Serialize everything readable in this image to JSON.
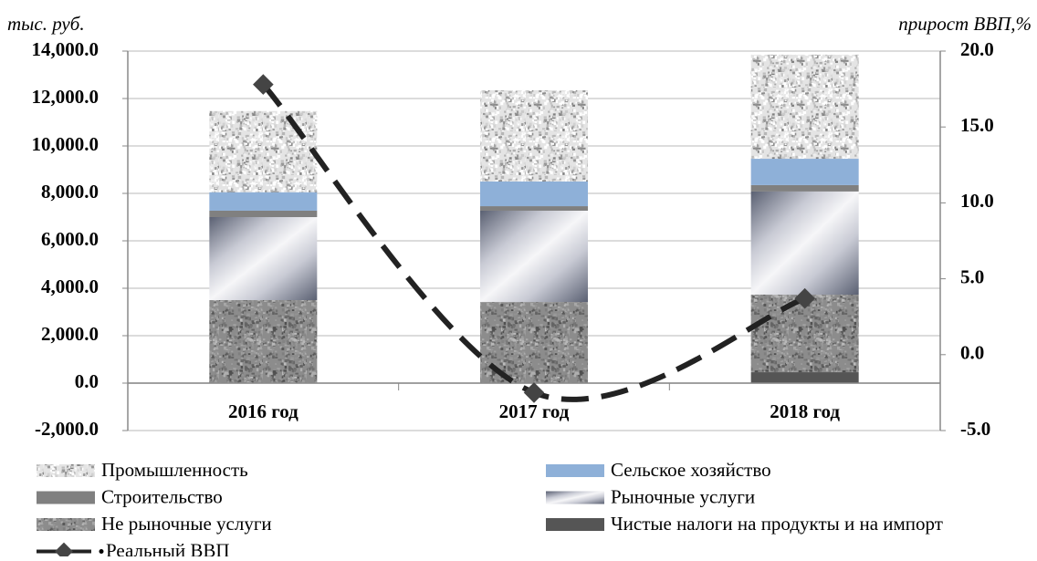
{
  "chart_data": {
    "type": "bar",
    "stacked": true,
    "y_label": "тыс. руб.",
    "y2_label": "прирост ВВП,%",
    "categories": [
      "2016 год",
      "2017 год",
      "2018 год"
    ],
    "ylim": [
      -2000,
      14000
    ],
    "yticks": [
      {
        "value": -2000,
        "label": "-2,000.0"
      },
      {
        "value": 0,
        "label": "0.0"
      },
      {
        "value": 2000,
        "label": "2,000.0"
      },
      {
        "value": 4000,
        "label": "4,000.0"
      },
      {
        "value": 6000,
        "label": "6,000.0"
      },
      {
        "value": 8000,
        "label": "8,000.0"
      },
      {
        "value": 10000,
        "label": "10,000.0"
      },
      {
        "value": 12000,
        "label": "12,000.0"
      },
      {
        "value": 14000,
        "label": "14,000.0"
      }
    ],
    "y2lim": [
      -5,
      20
    ],
    "y2ticks": [
      {
        "value": -5,
        "label": "-5.0"
      },
      {
        "value": 0,
        "label": "0.0"
      },
      {
        "value": 5,
        "label": "5.0"
      },
      {
        "value": 10,
        "label": "10.0"
      },
      {
        "value": 15,
        "label": "15.0"
      },
      {
        "value": 20,
        "label": "20.0"
      }
    ],
    "grid": true,
    "legend": "bottom",
    "series": [
      {
        "name": "Промышленность",
        "color": "#e4e4e4",
        "pattern": "speckle",
        "values": [
          3420,
          3850,
          4390
        ]
      },
      {
        "name": "Сельское хозяйство",
        "color": "#8eb0d8",
        "pattern": "solid",
        "values": [
          780,
          1040,
          1110
        ]
      },
      {
        "name": "Строительство",
        "color": "#808080",
        "pattern": "solid",
        "values": [
          270,
          190,
          270
        ]
      },
      {
        "name": "Рыночные услуги",
        "color": "#5a6072",
        "pattern": "gradient",
        "values": [
          3500,
          3850,
          4350
        ]
      },
      {
        "name": "Не рыночные услуги",
        "color": "#8c8c8c",
        "pattern": "speckle",
        "values": [
          3500,
          3420,
          3270
        ]
      },
      {
        "name": "Чистые налоги на продукты и на импорт",
        "color": "#555555",
        "pattern": "solid",
        "values": [
          0,
          0,
          460
        ]
      },
      {
        "name": "Реальный ВВП",
        "color": "#222222",
        "type": "line",
        "axis": "y2",
        "values": [
          17.8,
          -2.5,
          3.7
        ]
      }
    ]
  }
}
